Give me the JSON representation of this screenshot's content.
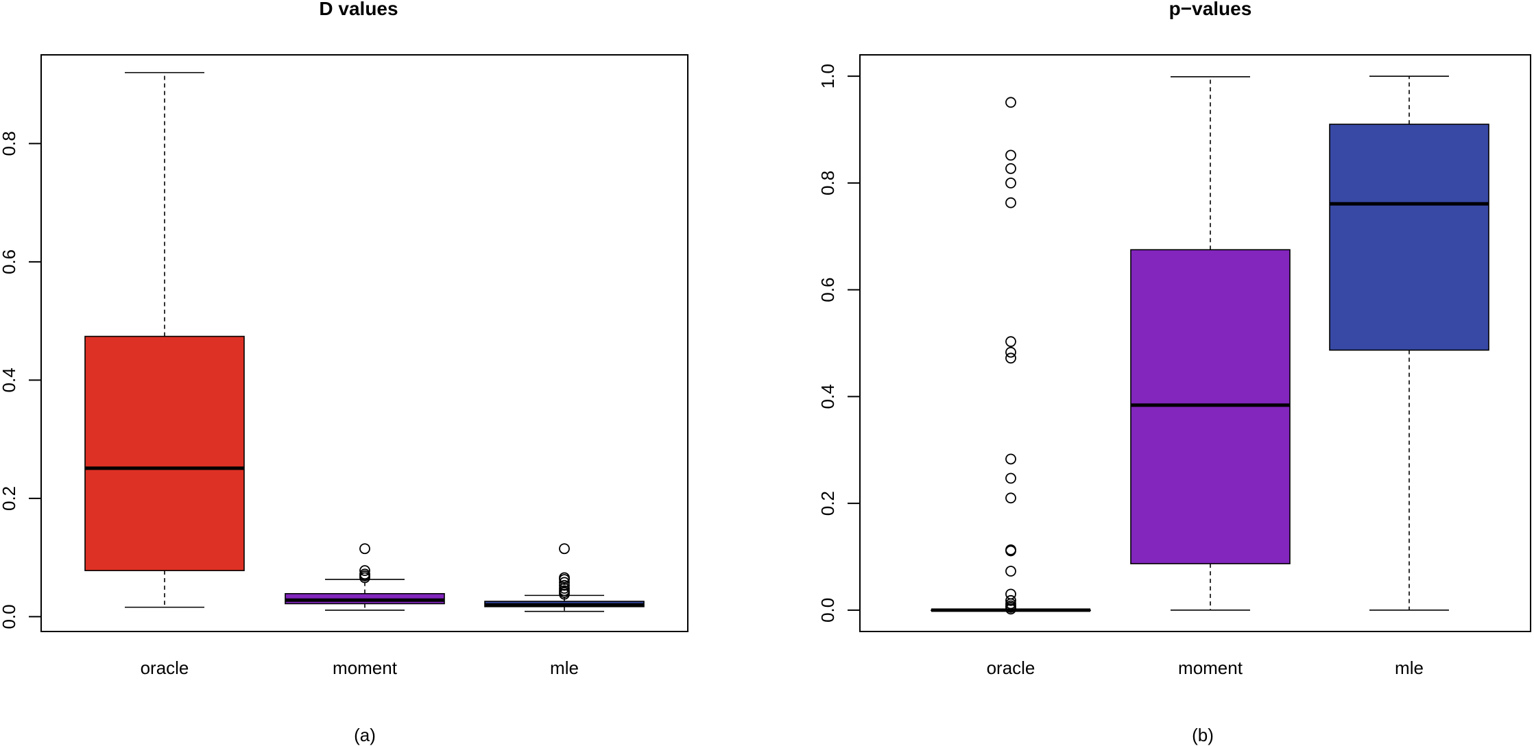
{
  "colors": {
    "oracle": "#DE3125",
    "moment": "#8226BD",
    "mle": "#3749A4",
    "outline": "#000000"
  },
  "chart_data": [
    {
      "type": "box",
      "title": "D values",
      "caption": "(a)",
      "xlabel": "",
      "ylabel": "",
      "ylim": [
        -0.025,
        0.95
      ],
      "yticks": [
        0.0,
        0.2,
        0.4,
        0.6,
        0.8
      ],
      "ytick_labels": [
        "0.0",
        "0.2",
        "0.4",
        "0.6",
        "0.8"
      ],
      "grid": false,
      "categories": [
        "oracle",
        "moment",
        "mle"
      ],
      "boxes": [
        {
          "name": "oracle",
          "whisker_low": 0.016,
          "q1": 0.078,
          "median": 0.251,
          "q3": 0.474,
          "whisker_high": 0.92,
          "outliers": []
        },
        {
          "name": "moment",
          "whisker_low": 0.011,
          "q1": 0.022,
          "median": 0.028,
          "q3": 0.039,
          "whisker_high": 0.063,
          "outliers": [
            0.066,
            0.069,
            0.072,
            0.078,
            0.115
          ]
        },
        {
          "name": "mle",
          "whisker_low": 0.009,
          "q1": 0.017,
          "median": 0.02,
          "q3": 0.026,
          "whisker_high": 0.036,
          "outliers": [
            0.038,
            0.041,
            0.044,
            0.048,
            0.053,
            0.058,
            0.063,
            0.066,
            0.115
          ]
        }
      ]
    },
    {
      "type": "box",
      "title": "p−values",
      "caption": "(b)",
      "xlabel": "",
      "ylabel": "",
      "ylim": [
        -0.04,
        1.04
      ],
      "yticks": [
        0.0,
        0.2,
        0.4,
        0.6,
        0.8,
        1.0
      ],
      "ytick_labels": [
        "0.0",
        "0.2",
        "0.4",
        "0.6",
        "0.8",
        "1.0"
      ],
      "grid": false,
      "categories": [
        "oracle",
        "moment",
        "mle"
      ],
      "boxes": [
        {
          "name": "oracle",
          "whisker_low": 0.0,
          "q1": 0.0,
          "median": 0.0,
          "q3": 0.0,
          "whisker_high": 0.0,
          "outliers": [
            0.002,
            0.005,
            0.008,
            0.012,
            0.018,
            0.03,
            0.073,
            0.111,
            0.113,
            0.21,
            0.247,
            0.283,
            0.472,
            0.483,
            0.503,
            0.763,
            0.8,
            0.827,
            0.852,
            0.951
          ]
        },
        {
          "name": "moment",
          "whisker_low": 0.0,
          "q1": 0.087,
          "median": 0.384,
          "q3": 0.675,
          "whisker_high": 0.999,
          "outliers": []
        },
        {
          "name": "mle",
          "whisker_low": 0.0,
          "q1": 0.487,
          "median": 0.761,
          "q3": 0.91,
          "whisker_high": 1.0,
          "outliers": []
        }
      ]
    }
  ]
}
